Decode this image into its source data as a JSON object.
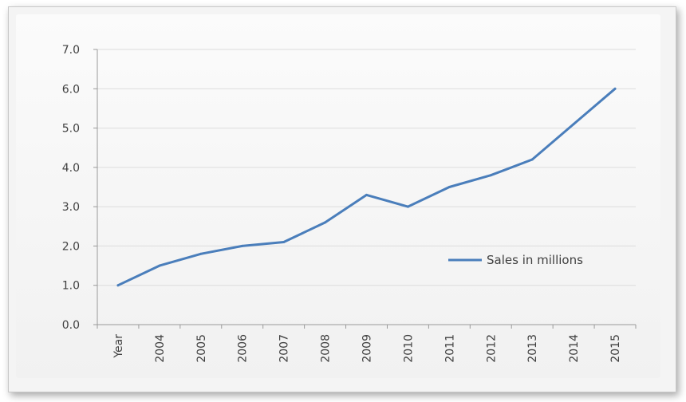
{
  "chart_data": {
    "type": "line",
    "categories": [
      "Year",
      "2004",
      "2005",
      "2006",
      "2007",
      "2008",
      "2009",
      "2010",
      "2011",
      "2012",
      "2013",
      "2014",
      "2015"
    ],
    "series": [
      {
        "name": "Sales in millions",
        "values": [
          1.0,
          1.5,
          1.8,
          2.0,
          2.1,
          2.6,
          3.3,
          3.0,
          3.5,
          3.8,
          4.2,
          5.1,
          6.0
        ],
        "color": "#4a7ebb"
      }
    ],
    "y_ticks": [
      "0.0",
      "1.0",
      "2.0",
      "3.0",
      "4.0",
      "5.0",
      "6.0",
      "7.0"
    ],
    "ylim": [
      0,
      7
    ],
    "grid": true,
    "legend_position": "right",
    "colors": {
      "line": "#4a7ebb",
      "grid": "#dcdcdc",
      "axis": "#9a9a9a"
    }
  }
}
